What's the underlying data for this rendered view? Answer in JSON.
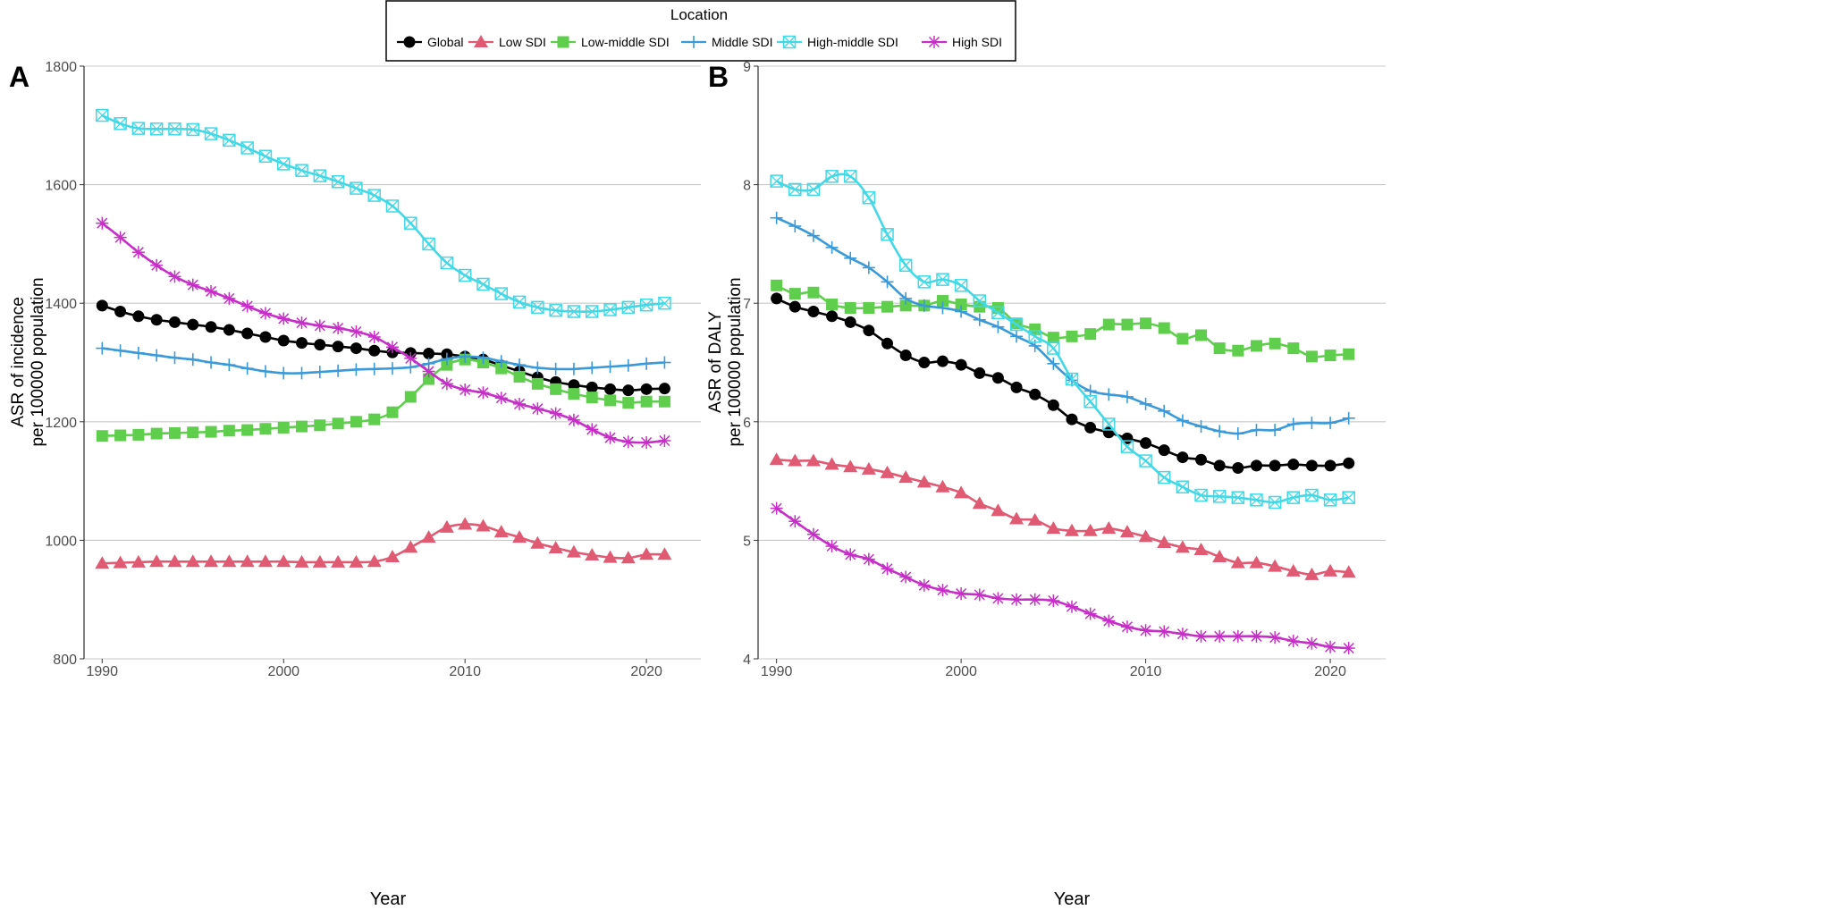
{
  "legend": {
    "title": "Location",
    "entries": [
      {
        "name": "Global",
        "color": "#000000",
        "marker": "circle"
      },
      {
        "name": "Low SDI",
        "color": "#e05a73",
        "marker": "triangle"
      },
      {
        "name": "Low-middle SDI",
        "color": "#5fce4d",
        "marker": "square"
      },
      {
        "name": "Middle SDI",
        "color": "#3a9ad9",
        "marker": "plus"
      },
      {
        "name": "High-middle SDI",
        "color": "#42d8e6",
        "marker": "boxcross"
      },
      {
        "name": "High SDI",
        "color": "#c62fc7",
        "marker": "asterisk"
      }
    ]
  },
  "chart_data": [
    {
      "panel_label": "A",
      "type": "line",
      "xlabel": "Year",
      "ylabel_line1": "ASR of incidence",
      "ylabel_line2": "per 100000 population",
      "xlim": [
        1989,
        2023
      ],
      "ylim": [
        800,
        1800
      ],
      "xticks": [
        1990,
        2000,
        2010,
        2020
      ],
      "yticks": [
        800,
        1000,
        1200,
        1400,
        1600,
        1800
      ],
      "grid": "horizontal",
      "x": [
        1990,
        1991,
        1992,
        1993,
        1994,
        1995,
        1996,
        1997,
        1998,
        1999,
        2000,
        2001,
        2002,
        2003,
        2004,
        2005,
        2006,
        2007,
        2008,
        2009,
        2010,
        2011,
        2012,
        2013,
        2014,
        2015,
        2016,
        2017,
        2018,
        2019,
        2020,
        2021
      ],
      "series": [
        {
          "name": "Global",
          "values": [
            1396,
            1386,
            1378,
            1372,
            1368,
            1364,
            1360,
            1355,
            1349,
            1343,
            1337,
            1333,
            1330,
            1327,
            1324,
            1320,
            1317,
            1316,
            1315,
            1314,
            1310,
            1305,
            1295,
            1285,
            1275,
            1267,
            1262,
            1258,
            1255,
            1253,
            1255,
            1256
          ]
        },
        {
          "name": "Low SDI",
          "values": [
            961,
            962,
            963,
            964,
            964,
            964,
            964,
            964,
            964,
            964,
            964,
            963,
            963,
            963,
            963,
            964,
            972,
            988,
            1005,
            1022,
            1027,
            1024,
            1014,
            1005,
            995,
            987,
            980,
            975,
            971,
            970,
            976,
            976
          ]
        },
        {
          "name": "Low-middle SDI",
          "values": [
            1176,
            1177,
            1178,
            1180,
            1181,
            1182,
            1183,
            1185,
            1186,
            1188,
            1190,
            1192,
            1194,
            1197,
            1200,
            1204,
            1216,
            1242,
            1272,
            1296,
            1305,
            1300,
            1290,
            1276,
            1264,
            1255,
            1247,
            1241,
            1236,
            1232,
            1234,
            1234
          ]
        },
        {
          "name": "Middle SDI",
          "values": [
            1324,
            1320,
            1316,
            1312,
            1308,
            1305,
            1300,
            1296,
            1290,
            1285,
            1282,
            1282,
            1284,
            1286,
            1288,
            1289,
            1290,
            1292,
            1298,
            1306,
            1310,
            1308,
            1302,
            1296,
            1291,
            1289,
            1289,
            1291,
            1293,
            1295,
            1298,
            1300
          ]
        },
        {
          "name": "High-middle SDI",
          "values": [
            1717,
            1703,
            1695,
            1694,
            1694,
            1693,
            1686,
            1675,
            1662,
            1648,
            1635,
            1624,
            1615,
            1605,
            1594,
            1582,
            1564,
            1535,
            1500,
            1468,
            1447,
            1432,
            1416,
            1402,
            1393,
            1388,
            1386,
            1386,
            1389,
            1393,
            1397,
            1400
          ]
        },
        {
          "name": "High SDI",
          "values": [
            1535,
            1511,
            1486,
            1464,
            1445,
            1431,
            1420,
            1408,
            1395,
            1383,
            1374,
            1367,
            1362,
            1358,
            1352,
            1343,
            1326,
            1307,
            1285,
            1264,
            1254,
            1249,
            1240,
            1230,
            1222,
            1214,
            1203,
            1187,
            1173,
            1166,
            1165,
            1168
          ]
        }
      ]
    },
    {
      "panel_label": "B",
      "type": "line",
      "xlabel": "Year",
      "ylabel_line1": "ASR of DALY",
      "ylabel_line2": "per 100000 population",
      "xlim": [
        1989,
        2023
      ],
      "ylim": [
        4,
        9
      ],
      "xticks": [
        1990,
        2000,
        2010,
        2020
      ],
      "yticks": [
        4,
        5,
        6,
        7,
        8,
        9
      ],
      "grid": "horizontal",
      "x": [
        1990,
        1991,
        1992,
        1993,
        1994,
        1995,
        1996,
        1997,
        1998,
        1999,
        2000,
        2001,
        2002,
        2003,
        2004,
        2005,
        2006,
        2007,
        2008,
        2009,
        2010,
        2011,
        2012,
        2013,
        2014,
        2015,
        2016,
        2017,
        2018,
        2019,
        2020,
        2021
      ],
      "series": [
        {
          "name": "Global",
          "values": [
            7.04,
            6.97,
            6.93,
            6.89,
            6.84,
            6.77,
            6.66,
            6.56,
            6.5,
            6.51,
            6.48,
            6.41,
            6.37,
            6.29,
            6.23,
            6.14,
            6.02,
            5.95,
            5.91,
            5.86,
            5.82,
            5.76,
            5.7,
            5.68,
            5.63,
            5.61,
            5.63,
            5.63,
            5.64,
            5.63,
            5.63,
            5.65
          ]
        },
        {
          "name": "Low SDI",
          "values": [
            5.68,
            5.67,
            5.67,
            5.64,
            5.62,
            5.6,
            5.57,
            5.53,
            5.49,
            5.45,
            5.4,
            5.31,
            5.25,
            5.18,
            5.17,
            5.1,
            5.08,
            5.08,
            5.1,
            5.07,
            5.03,
            4.98,
            4.94,
            4.92,
            4.86,
            4.81,
            4.81,
            4.78,
            4.74,
            4.71,
            4.74,
            4.73
          ]
        },
        {
          "name": "Low-middle SDI",
          "values": [
            7.15,
            7.08,
            7.09,
            6.99,
            6.96,
            6.96,
            6.97,
            6.98,
            6.98,
            7.02,
            6.99,
            6.97,
            6.96,
            6.83,
            6.78,
            6.71,
            6.72,
            6.74,
            6.82,
            6.82,
            6.83,
            6.79,
            6.7,
            6.73,
            6.62,
            6.6,
            6.64,
            6.66,
            6.62,
            6.55,
            6.56,
            6.57
          ]
        },
        {
          "name": "Middle SDI",
          "values": [
            7.72,
            7.65,
            7.57,
            7.47,
            7.38,
            7.3,
            7.18,
            7.04,
            6.98,
            6.96,
            6.93,
            6.86,
            6.8,
            6.72,
            6.64,
            6.49,
            6.35,
            6.26,
            6.23,
            6.21,
            6.15,
            6.09,
            6.01,
            5.96,
            5.92,
            5.9,
            5.93,
            5.93,
            5.98,
            5.99,
            5.99,
            6.03
          ]
        },
        {
          "name": "High-middle SDI",
          "values": [
            8.03,
            7.96,
            7.96,
            8.07,
            8.07,
            7.89,
            7.58,
            7.32,
            7.18,
            7.2,
            7.15,
            7.02,
            6.92,
            6.82,
            6.72,
            6.62,
            6.36,
            6.17,
            5.98,
            5.79,
            5.67,
            5.53,
            5.45,
            5.38,
            5.37,
            5.36,
            5.34,
            5.32,
            5.36,
            5.38,
            5.34,
            5.36
          ]
        },
        {
          "name": "High SDI",
          "values": [
            5.27,
            5.16,
            5.05,
            4.95,
            4.88,
            4.84,
            4.76,
            4.69,
            4.62,
            4.58,
            4.55,
            4.54,
            4.51,
            4.5,
            4.5,
            4.49,
            4.44,
            4.38,
            4.32,
            4.27,
            4.24,
            4.23,
            4.21,
            4.19,
            4.19,
            4.19,
            4.19,
            4.18,
            4.15,
            4.13,
            4.1,
            4.09
          ]
        }
      ]
    }
  ]
}
